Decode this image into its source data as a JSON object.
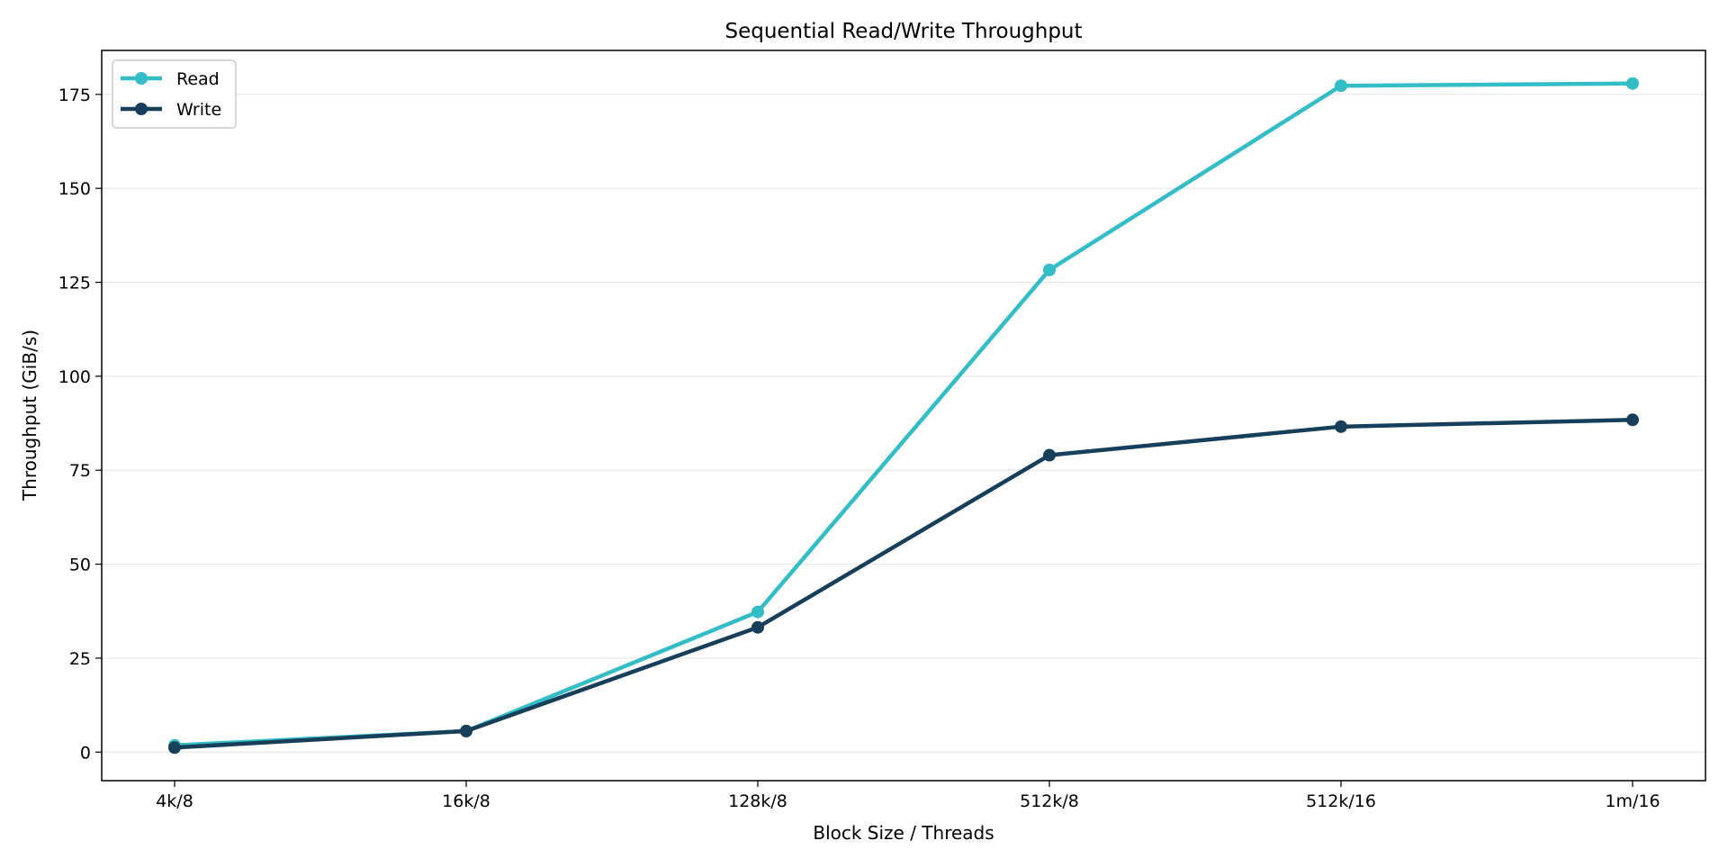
{
  "chart_data": {
    "type": "line",
    "title": "Sequential Read/Write Throughput",
    "xlabel": "Block Size / Threads",
    "ylabel": "Throughput (GiB/s)",
    "categories": [
      "4k/8",
      "16k/8",
      "128k/8",
      "512k/8",
      "512k/16",
      "1m/16"
    ],
    "series": [
      {
        "name": "Read",
        "color": "#33bdc6",
        "values": [
          1.8,
          5.6,
          37.3,
          128.3,
          177.3,
          177.9
        ]
      },
      {
        "name": "Write",
        "color": "#173f5a",
        "values": [
          1.2,
          5.6,
          33.2,
          79.0,
          86.6,
          88.4
        ]
      }
    ],
    "ylim": [
      -7.6,
      186.7
    ],
    "yticks": [
      0,
      25,
      50,
      75,
      100,
      125,
      150,
      175
    ],
    "grid": "horizontal",
    "legend": "top-left"
  }
}
